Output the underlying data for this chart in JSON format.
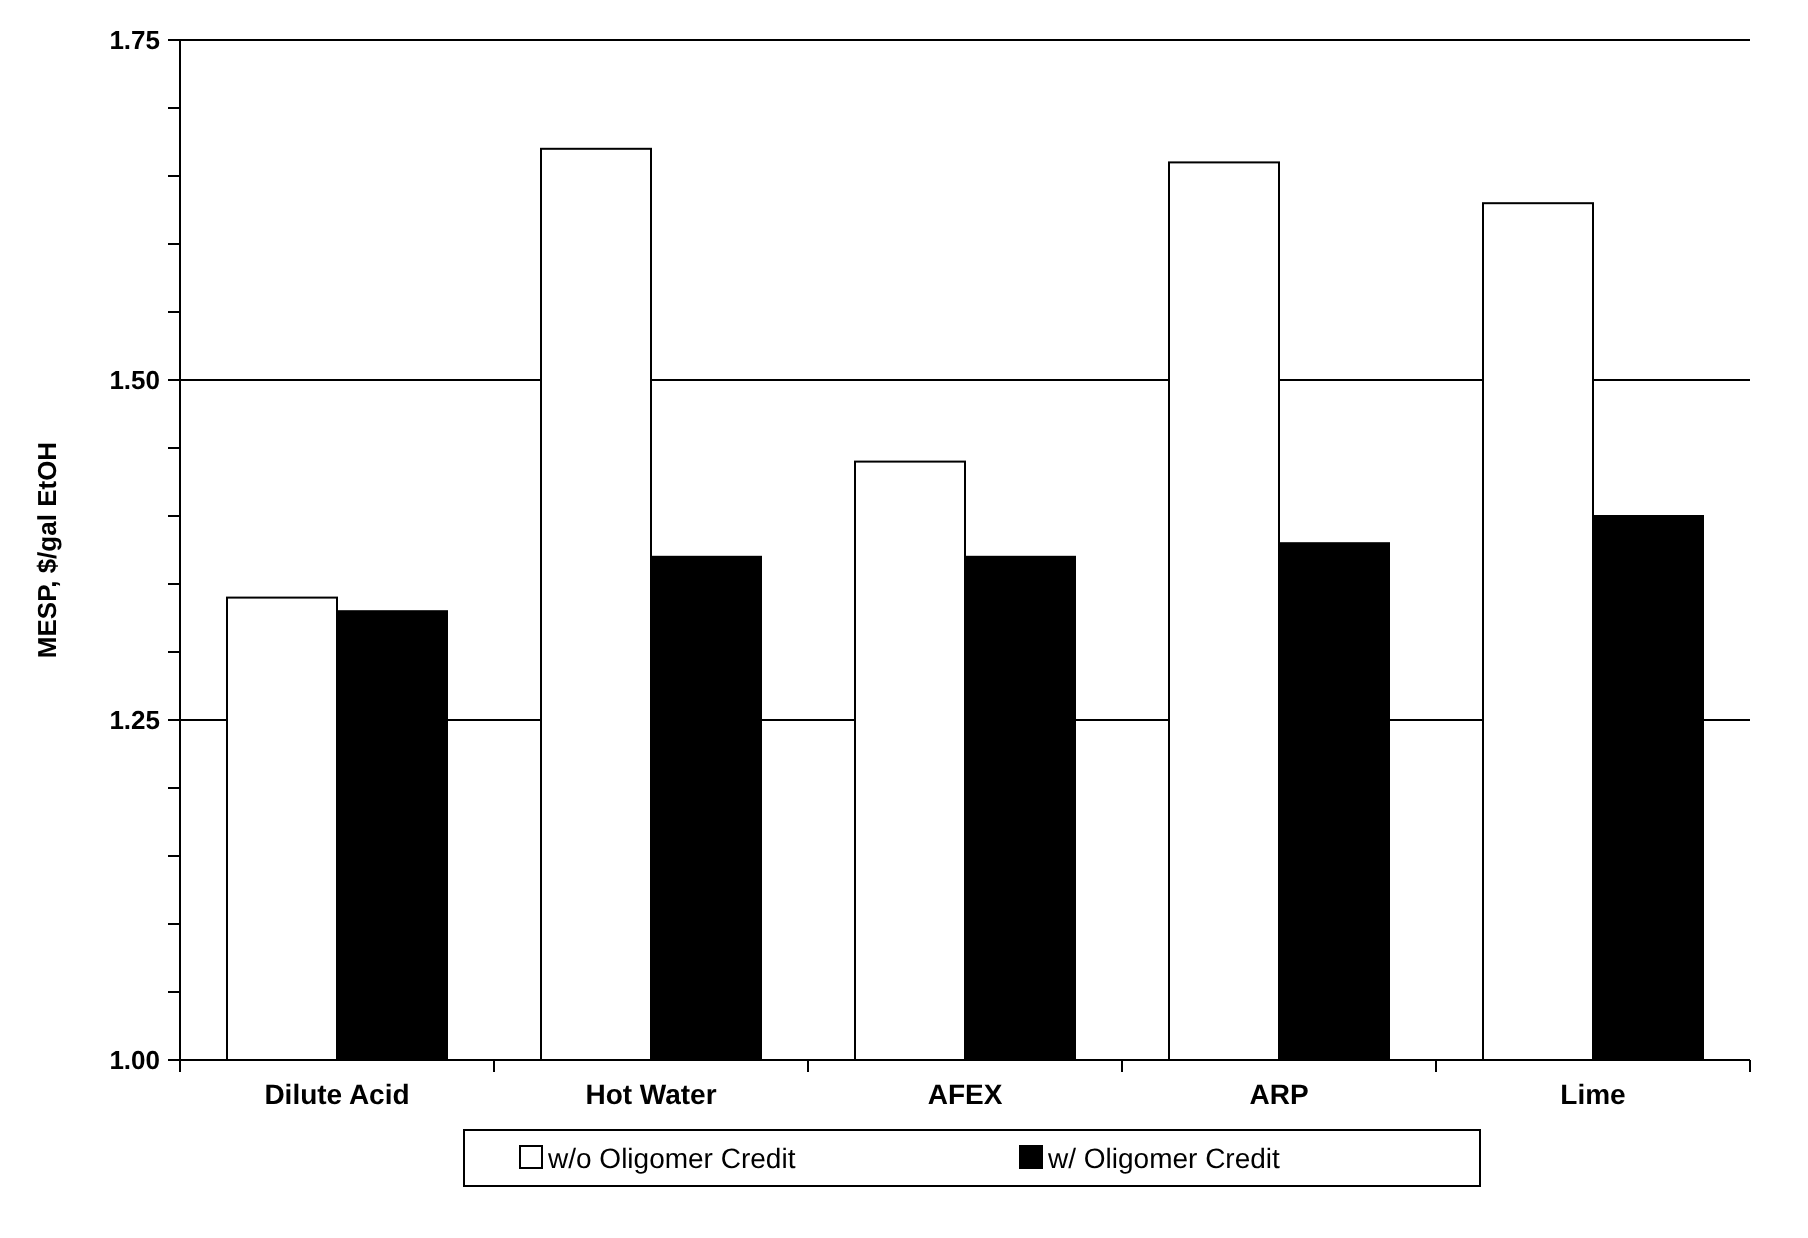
{
  "chart_data": {
    "type": "bar",
    "ylabel": "MESP, $/gal EtOH",
    "categories": [
      "Dilute Acid",
      "Hot Water",
      "AFEX",
      "ARP",
      "Lime"
    ],
    "series": [
      {
        "name": "w/o Oligomer Credit",
        "color": "#ffffff",
        "values": [
          1.34,
          1.67,
          1.44,
          1.66,
          1.63
        ]
      },
      {
        "name": "w/ Oligomer Credit",
        "color": "#000000",
        "values": [
          1.33,
          1.37,
          1.37,
          1.38,
          1.4
        ]
      }
    ],
    "ylim": [
      1,
      1.75
    ],
    "yticks": [
      {
        "value": 1,
        "label": "1.00"
      },
      {
        "value": 1.05,
        "label": null
      },
      {
        "value": 1.1,
        "label": null
      },
      {
        "value": 1.15,
        "label": null
      },
      {
        "value": 1.2,
        "label": null
      },
      {
        "value": 1.25,
        "label": "1.25"
      },
      {
        "value": 1.3,
        "label": null
      },
      {
        "value": 1.35,
        "label": null
      },
      {
        "value": 1.4,
        "label": null
      },
      {
        "value": 1.45,
        "label": null
      },
      {
        "value": 1.5,
        "label": "1.50"
      },
      {
        "value": 1.55,
        "label": null
      },
      {
        "value": 1.6,
        "label": null
      },
      {
        "value": 1.65,
        "label": null
      },
      {
        "value": 1.7,
        "label": null
      },
      {
        "value": 1.75,
        "label": "1.75"
      }
    ],
    "grid": "y",
    "legend": "bottom"
  }
}
